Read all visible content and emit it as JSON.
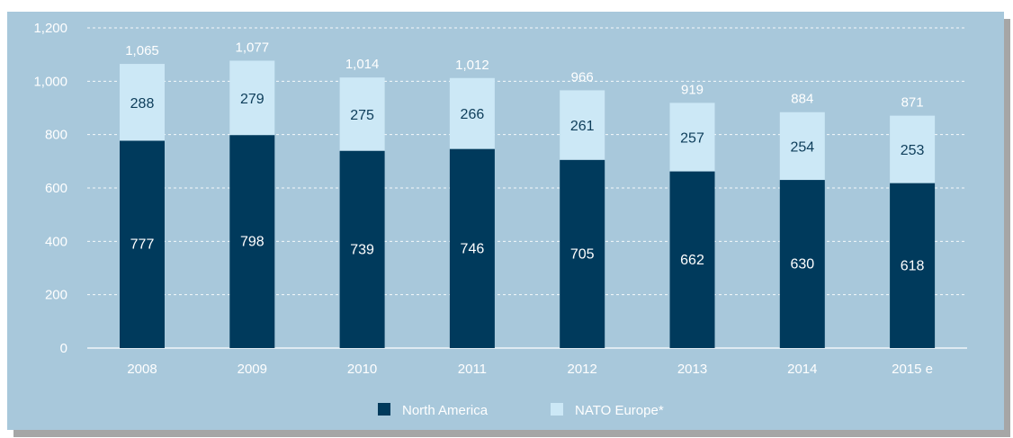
{
  "colors": {
    "background": "#a8c8db",
    "north_america": "#003a5c",
    "nato_europe": "#cce8f6",
    "grid": "#ffffff",
    "text": "#ffffff",
    "dark_label": "#0d3d5a"
  },
  "chart_data": {
    "type": "bar",
    "stacked": true,
    "categories": [
      "2008",
      "2009",
      "2010",
      "2011",
      "2012",
      "2013",
      "2014",
      "2015 e"
    ],
    "series": [
      {
        "name": "North America",
        "values": [
          777,
          798,
          739,
          746,
          705,
          662,
          630,
          618
        ]
      },
      {
        "name": "NATO Europe*",
        "values": [
          288,
          279,
          275,
          266,
          261,
          257,
          254,
          253
        ]
      }
    ],
    "totals": [
      1065,
      1077,
      1014,
      1012,
      966,
      919,
      884,
      871
    ],
    "total_labels": [
      "1,065",
      "1,077",
      "1,014",
      "1,012",
      "966",
      "919",
      "884",
      "871"
    ],
    "y_ticks": [
      0,
      200,
      400,
      600,
      800,
      1000,
      1200
    ],
    "y_tick_labels": [
      "0",
      "200",
      "400",
      "600",
      "800",
      "1,000",
      "1,200"
    ],
    "ylim": [
      0,
      1200
    ],
    "grid": true,
    "legend_position": "bottom-center"
  }
}
